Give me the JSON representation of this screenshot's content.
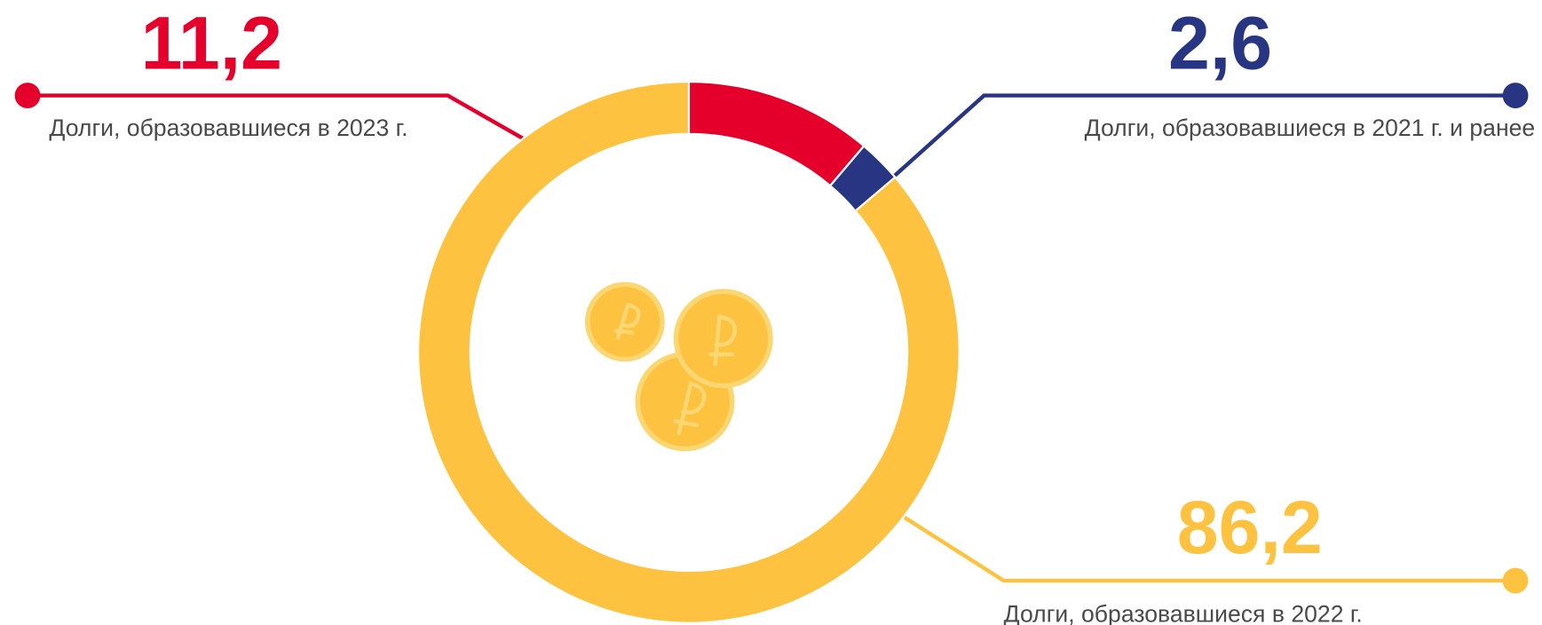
{
  "chart_data": {
    "type": "donut",
    "categories": [
      "Долги, образовавшиеся в 2023 г.",
      "Долги, образовавшиеся в 2021 г. и ранее",
      "Долги, образовавшиеся в 2022 г."
    ],
    "values": [
      11.2,
      2.6,
      86.2
    ],
    "value_labels": [
      "11,2",
      "2,6",
      "86,2"
    ],
    "colors": [
      "#e4002b",
      "#283583",
      "#fdc340"
    ]
  }
}
